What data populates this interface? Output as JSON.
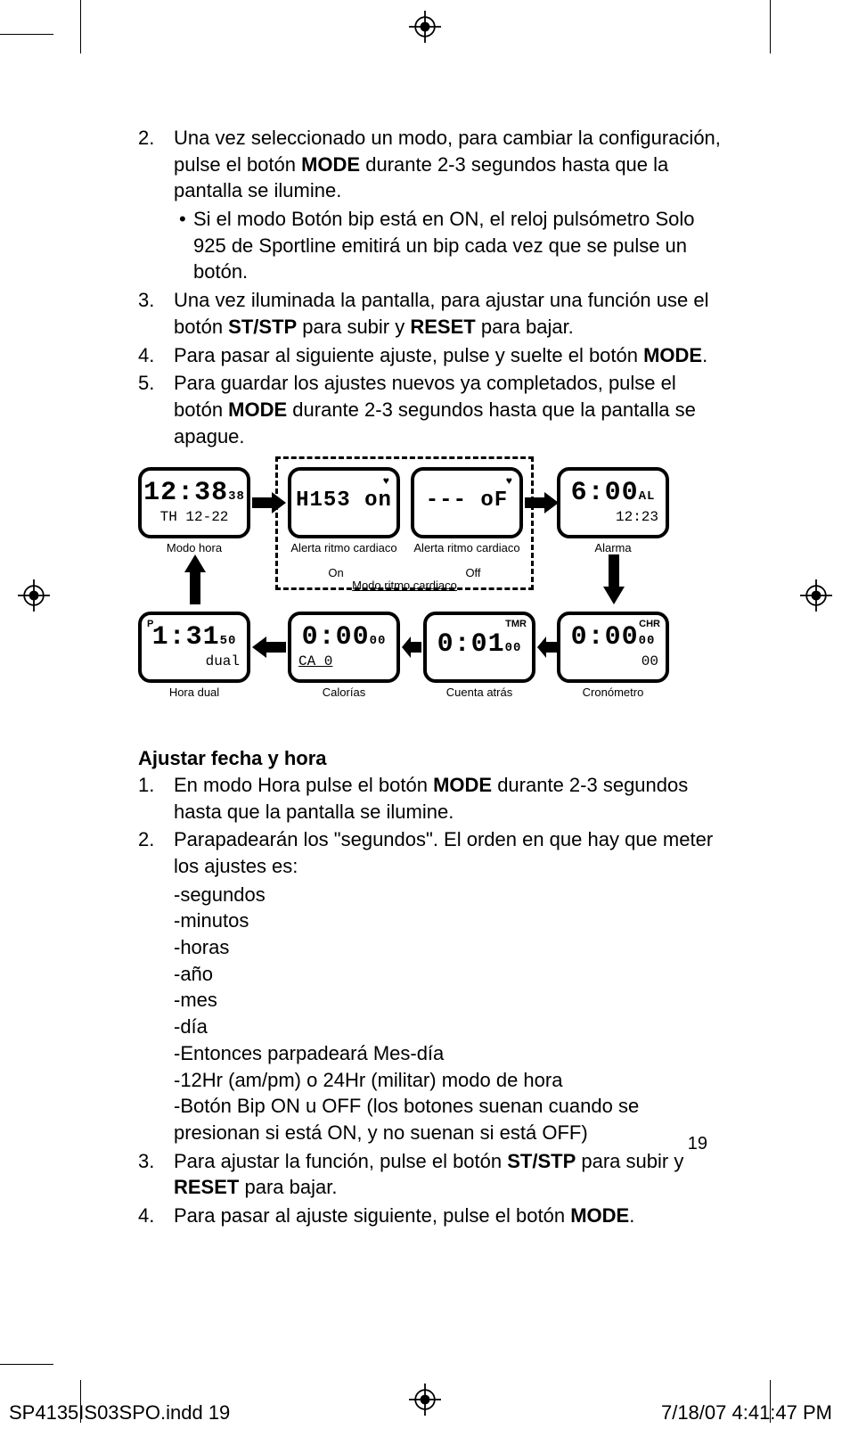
{
  "instructions_top": [
    {
      "num": "2.",
      "html": "Una vez seleccionado un modo, para cambiar la configuración, pulse el botón <b>MODE</b> durante 2-3 segundos hasta que la pantalla se ilumine."
    },
    {
      "sub": "Si el modo Botón bip está en ON, el reloj pulsómetro Solo 925 de Sportline emitirá un bip cada vez que se pulse un botón."
    },
    {
      "num": "3.",
      "html": "Una vez iluminada la pantalla, para ajustar una función use el botón <b>ST/STP</b> para subir y <b>RESET</b> para bajar."
    },
    {
      "num": "4.",
      "html": "Para pasar al siguiente ajuste, pulse y suelte el botón <b>MODE</b>."
    },
    {
      "num": "5.",
      "html": "Para guardar los ajustes nuevos ya completados, pulse el botón <b>MODE</b> durante 2-3 segundos hasta que la pantalla se apague."
    }
  ],
  "diagram": {
    "screens": [
      {
        "id": "time",
        "l1": "12:38",
        "l1s": "38",
        "l2": "TH 12-22",
        "cap": "Modo hora"
      },
      {
        "id": "hr-on",
        "l1": "H153 on",
        "cap": "Alerta ritmo cardiaco",
        "sub": "On",
        "heart": true
      },
      {
        "id": "hr-off",
        "l1": "--- oF",
        "cap": "Alerta ritmo cardiaco",
        "sub": "Off",
        "heart": true
      },
      {
        "id": "alarm",
        "l1": "6:00",
        "l1s": "AL",
        "l2": "12:23",
        "cap": "Alarma"
      },
      {
        "id": "dual",
        "l1": "1:31",
        "l1s": "50",
        "l2": "dual",
        "cap": "Hora dual",
        "corner_l": "P"
      },
      {
        "id": "cal",
        "l1": "0:00",
        "l1s": "00",
        "l2": "CA   0",
        "cap": "Calorías"
      },
      {
        "id": "tmr",
        "l1": "0:01",
        "l1s": "00",
        "cap": "Cuenta atrás",
        "corner": "TMR"
      },
      {
        "id": "chr",
        "l1": "0:00",
        "l1s": "00",
        "l2": "00",
        "cap": "Cronómetro",
        "corner": "CHR"
      }
    ],
    "group_label": "Modo ritmo cardiaco"
  },
  "section2": {
    "heading": "Ajustar fecha y hora",
    "items": [
      {
        "num": "1.",
        "html": "En modo Hora pulse el botón <b>MODE</b> durante 2-3 segundos hasta que la pantalla se ilumine."
      },
      {
        "num": "2.",
        "html": "Parapadearán los \"segundos\". El orden en que hay que meter los ajustes es:"
      },
      {
        "list": [
          "-segundos",
          "-minutos",
          "-horas",
          "-año",
          "-mes",
          "-día",
          "-Entonces parpadeará Mes-día",
          "-12Hr (am/pm) o 24Hr (militar) modo de hora",
          "-Botón Bip ON u OFF (los botones suenan cuando se presionan si está ON, y no suenan si está OFF)"
        ]
      },
      {
        "num": "3.",
        "html": "Para ajustar la función, pulse el botón <b>ST/STP</b> para subir y <b>RESET</b> para bajar."
      },
      {
        "num": "4.",
        "html": "Para pasar al ajuste siguiente, pulse el botón <b>MODE</b>."
      }
    ]
  },
  "page_number": "19",
  "footer": {
    "file": "SP4135IS03SPO.indd   19",
    "stamp": "7/18/07   4:41:47 PM"
  },
  "colors": {
    "ink": "#000000",
    "paper": "#ffffff"
  }
}
